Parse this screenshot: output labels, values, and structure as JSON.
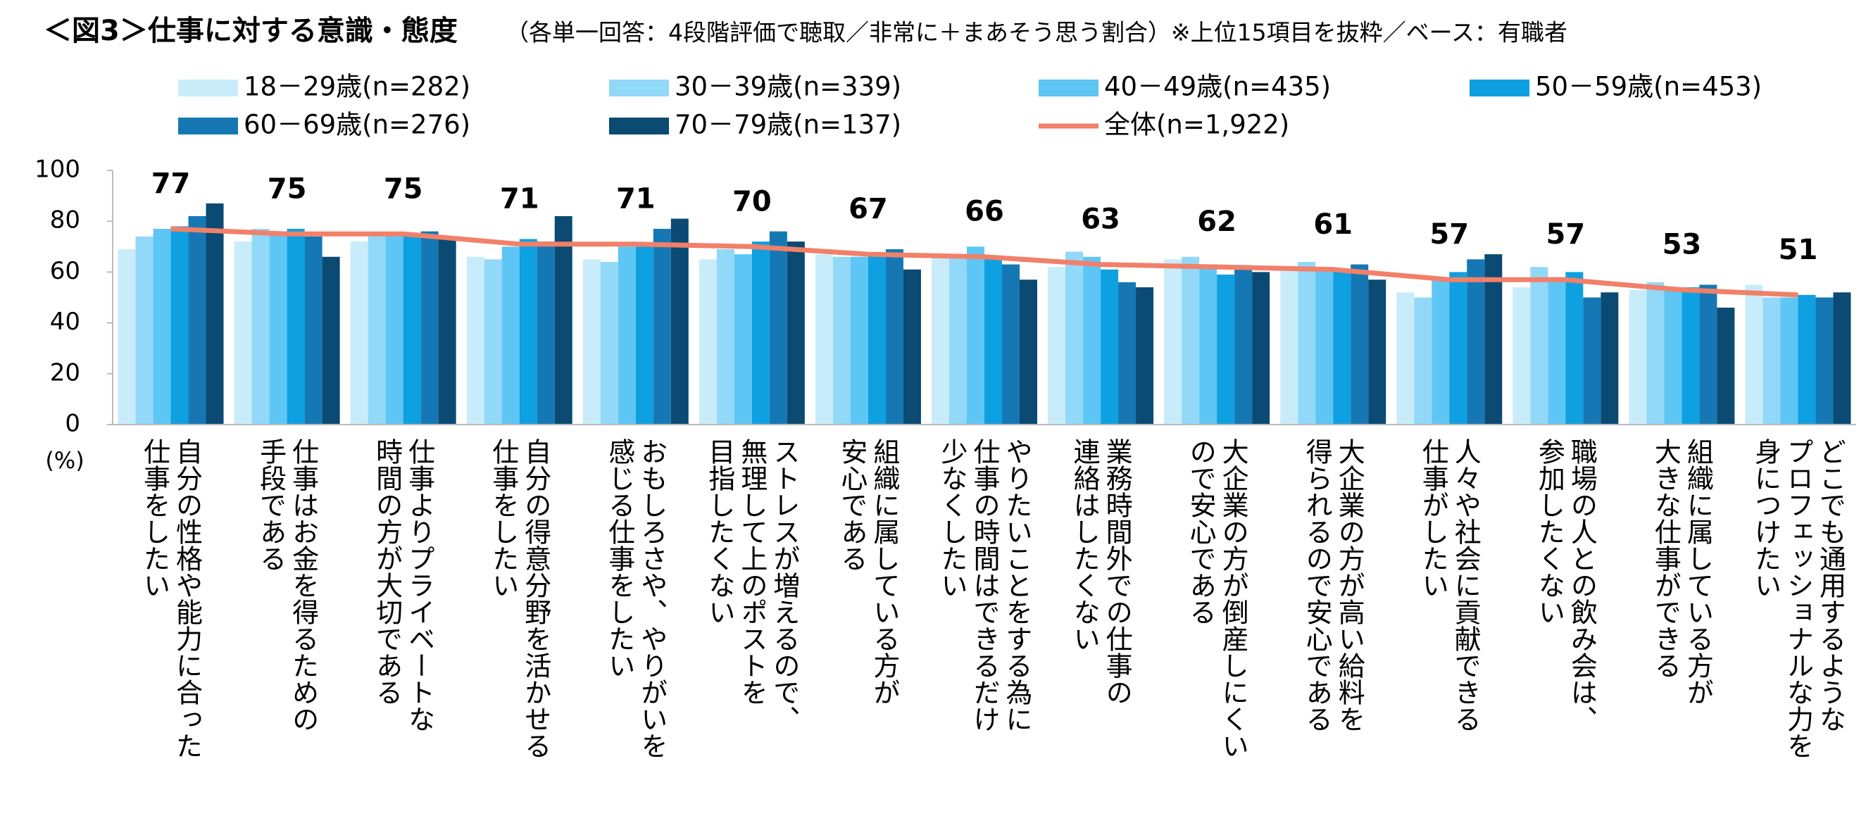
{
  "chart_data": {
    "type": "bar_line",
    "title": "＜図3＞仕事に対する意識・態度",
    "subtitle": "（各単一回答：4段階評価で聴取／非常に＋まあそう思う割合）※上位15項目を抜粋／ベース：有職者",
    "y_label": "(%)",
    "categories": [
      "自分の性格や能力に合った\n仕事をしたい",
      "仕事はお金を得るための\n手段である",
      "仕事よりプライベートな\n時間の方が大切である",
      "自分の得意分野を活かせる\n仕事をしたい",
      "おもしろさや、やりがいを\n感じる仕事をしたい",
      "ストレスが増えるので、\n無理して上のポストを\n目指したくない",
      "組織に属している方が\n安心である",
      "やりたいことをする為に\n仕事の時間はできるだけ\n少なくしたい",
      "業務時間外での仕事の\n連絡はしたくない",
      "大企業の方が倒産しにくい\nので安心である",
      "大企業の方が高い給料を\n得られるので安心である",
      "人々や社会に貢献できる\n仕事がしたい",
      "職場の人との飲み会は、\n参加したくない",
      "組織に属している方が\n大きな仕事ができる",
      "どこでも通用するような\nプロフェッショナルな力を\n身につけたい"
    ],
    "series": [
      {
        "name": "18－29歳(n=282)",
        "color": "#c9ecfb",
        "values": [
          69,
          72,
          72,
          66,
          65,
          65,
          67,
          67,
          62,
          65,
          62,
          52,
          54,
          53,
          55
        ]
      },
      {
        "name": "30－39歳(n=339)",
        "color": "#92d8f8",
        "values": [
          74,
          77,
          75,
          65,
          64,
          69,
          66,
          66,
          68,
          66,
          64,
          50,
          62,
          56,
          50
        ]
      },
      {
        "name": "40－49歳(n=435)",
        "color": "#5ec6f4",
        "values": [
          77,
          76,
          75,
          70,
          70,
          67,
          66,
          70,
          66,
          63,
          62,
          58,
          58,
          54,
          50
        ]
      },
      {
        "name": "50－59歳(n=453)",
        "color": "#0ea0e0",
        "values": [
          78,
          77,
          74,
          73,
          70,
          72,
          67,
          66,
          61,
          59,
          60,
          60,
          60,
          54,
          51
        ]
      },
      {
        "name": "60－69歳(n=276)",
        "color": "#1578b4",
        "values": [
          82,
          74,
          76,
          72,
          77,
          76,
          69,
          63,
          56,
          61,
          63,
          65,
          50,
          55,
          50
        ]
      },
      {
        "name": "70－79歳(n=137)",
        "color": "#0a4a73",
        "values": [
          87,
          66,
          73,
          82,
          81,
          72,
          61,
          57,
          54,
          60,
          57,
          67,
          52,
          46,
          52
        ]
      },
      {
        "name": "全体(n=1,922)",
        "color": "#f28068",
        "type": "line",
        "values": [
          77,
          75,
          75,
          71,
          71,
          70,
          67,
          66,
          63,
          62,
          61,
          57,
          57,
          53,
          51
        ]
      }
    ],
    "ylim": [
      0,
      100
    ],
    "yticks": [
      0,
      20,
      40,
      60,
      80,
      100
    ]
  }
}
